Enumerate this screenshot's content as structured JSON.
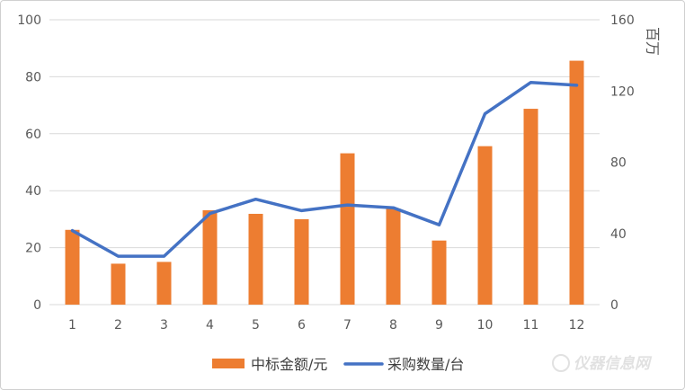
{
  "chart_data": {
    "type": "bar",
    "categories": [
      "1",
      "2",
      "3",
      "4",
      "5",
      "6",
      "7",
      "8",
      "9",
      "10",
      "11",
      "12"
    ],
    "series": [
      {
        "name": "中标金额/元",
        "type": "bar",
        "axis": "right",
        "color": "#ED7D31",
        "values": [
          42,
          23,
          24,
          53,
          51,
          48,
          85,
          54,
          36,
          89,
          110,
          137
        ]
      },
      {
        "name": "采购数量/台",
        "type": "line",
        "axis": "left",
        "color": "#4472C4",
        "values": [
          26,
          17,
          17,
          32,
          37,
          33,
          35,
          34,
          28,
          67,
          78,
          77
        ]
      }
    ],
    "y_left": {
      "range": [
        0,
        100
      ],
      "ticks": [
        0,
        20,
        40,
        60,
        80,
        100
      ]
    },
    "y_right": {
      "range": [
        0,
        160
      ],
      "ticks": [
        0,
        40,
        80,
        120,
        160
      ],
      "label": "百万"
    },
    "grid": true,
    "legend": "bottom"
  },
  "watermark": "仪器信息网"
}
